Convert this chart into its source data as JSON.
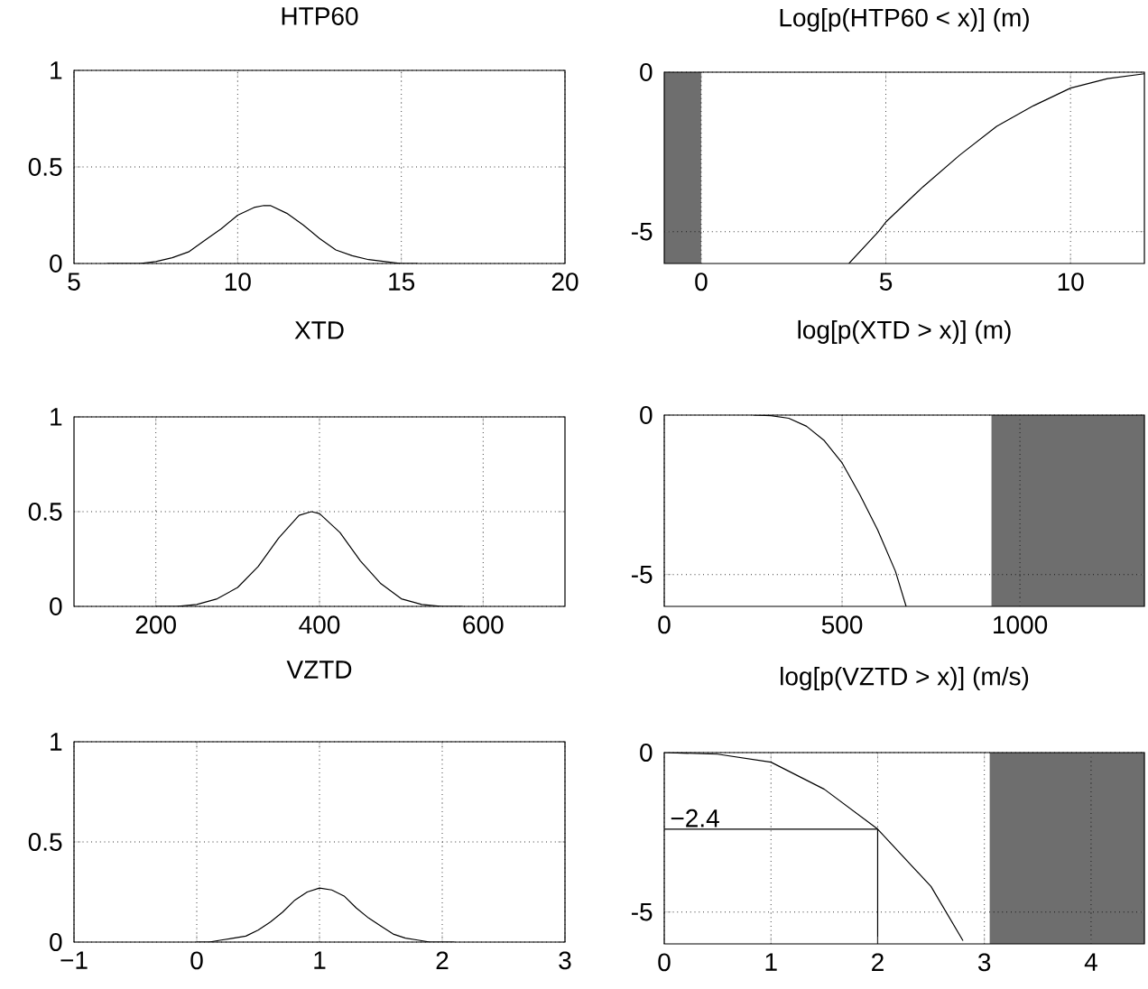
{
  "chart_data": [
    {
      "type": "line",
      "title": "HTP60",
      "color": "#000000",
      "x": [
        6,
        6.5,
        7,
        7.5,
        8,
        8.5,
        9,
        9.5,
        10,
        10.5,
        10.8,
        11,
        11.5,
        12,
        12.5,
        13,
        13.5,
        14,
        14.5,
        15,
        15.5
      ],
      "values": [
        0,
        0,
        0,
        0.01,
        0.03,
        0.06,
        0.12,
        0.18,
        0.25,
        0.29,
        0.3,
        0.3,
        0.26,
        0.2,
        0.13,
        0.07,
        0.04,
        0.02,
        0.01,
        0,
        0
      ],
      "xlim": [
        5,
        20
      ],
      "ylim": [
        0,
        1
      ],
      "xticks": [
        5,
        10,
        15,
        20
      ],
      "yticks": [
        0,
        0.5,
        1
      ],
      "grid": true
    },
    {
      "type": "line",
      "title": "Log[p(HTP60 < x)] (m)",
      "color": "#000000",
      "x": [
        4.0,
        4.8,
        5,
        6,
        7,
        8,
        9,
        10,
        11,
        12
      ],
      "values": [
        -6,
        -5,
        -4.7,
        -3.6,
        -2.6,
        -1.7,
        -1.05,
        -0.5,
        -0.2,
        -0.05
      ],
      "xlim": [
        -1,
        12
      ],
      "ylim": [
        -6,
        0
      ],
      "xticks": [
        0,
        5,
        10
      ],
      "yticks": [
        -5,
        0
      ],
      "grid": true,
      "bands": [
        {
          "axis": "x",
          "from": -1,
          "to": 0,
          "color": "#6e6e6e"
        }
      ]
    },
    {
      "type": "line",
      "title": "XTD",
      "color": "#000000",
      "x": [
        200,
        225,
        250,
        275,
        300,
        325,
        350,
        375,
        390,
        400,
        425,
        450,
        475,
        500,
        525,
        550,
        575
      ],
      "values": [
        0,
        0,
        0.01,
        0.04,
        0.1,
        0.21,
        0.36,
        0.48,
        0.5,
        0.49,
        0.39,
        0.24,
        0.12,
        0.04,
        0.01,
        0,
        0
      ],
      "xlim": [
        100,
        700
      ],
      "ylim": [
        0,
        1
      ],
      "xticks": [
        200,
        400,
        600
      ],
      "yticks": [
        0,
        0.5,
        1
      ],
      "grid": true
    },
    {
      "type": "line",
      "title": "log[p(XTD > x)] (m)",
      "color": "#000000",
      "x": [
        250,
        300,
        350,
        400,
        450,
        500,
        550,
        600,
        650,
        680
      ],
      "values": [
        0,
        -0.02,
        -0.1,
        -0.35,
        -0.8,
        -1.5,
        -2.5,
        -3.6,
        -4.9,
        -6
      ],
      "xlim": [
        0,
        1350
      ],
      "ylim": [
        -6,
        0
      ],
      "xticks": [
        0,
        500,
        1000
      ],
      "yticks": [
        -5,
        0
      ],
      "grid": true,
      "bands": [
        {
          "axis": "x",
          "from": 920,
          "to": 1350,
          "color": "#6e6e6e"
        }
      ]
    },
    {
      "type": "line",
      "title": "VZTD",
      "color": "#000000",
      "x": [
        0,
        0.1,
        0.2,
        0.3,
        0.4,
        0.5,
        0.6,
        0.7,
        0.8,
        0.9,
        1.0,
        1.1,
        1.2,
        1.3,
        1.4,
        1.5,
        1.6,
        1.7,
        1.8,
        1.9,
        2.0,
        2.1
      ],
      "values": [
        0,
        0,
        0.01,
        0.02,
        0.03,
        0.06,
        0.1,
        0.15,
        0.21,
        0.25,
        0.27,
        0.26,
        0.23,
        0.17,
        0.12,
        0.08,
        0.04,
        0.02,
        0.01,
        0,
        0,
        0
      ],
      "xlim": [
        -1,
        3
      ],
      "ylim": [
        0,
        1
      ],
      "xticks": [
        {
          "value": -1,
          "label": "−1"
        },
        0,
        1,
        2,
        3
      ],
      "yticks": [
        0,
        0.5,
        1
      ],
      "grid": true
    },
    {
      "type": "line",
      "title": "log[p(VZTD > x)] (m/s)",
      "color": "#000000",
      "x": [
        0,
        0.5,
        1,
        1.5,
        2,
        2.5,
        2.8
      ],
      "values": [
        0,
        -0.05,
        -0.3,
        -1.15,
        -2.4,
        -4.2,
        -5.9
      ],
      "xlim": [
        0,
        4.5
      ],
      "ylim": [
        -6,
        0
      ],
      "xticks": [
        0,
        1,
        2,
        3,
        4
      ],
      "yticks": [
        -5,
        0
      ],
      "grid": true,
      "bands": [
        {
          "axis": "x",
          "from": 3.05,
          "to": 4.5,
          "color": "#6e6e6e"
        }
      ],
      "ref_lines": [
        {
          "axis": "y",
          "value": -2.4,
          "label": "−2.4",
          "color": "#000000"
        },
        {
          "axis": "x",
          "value": 2,
          "color": "#000000"
        }
      ]
    }
  ]
}
